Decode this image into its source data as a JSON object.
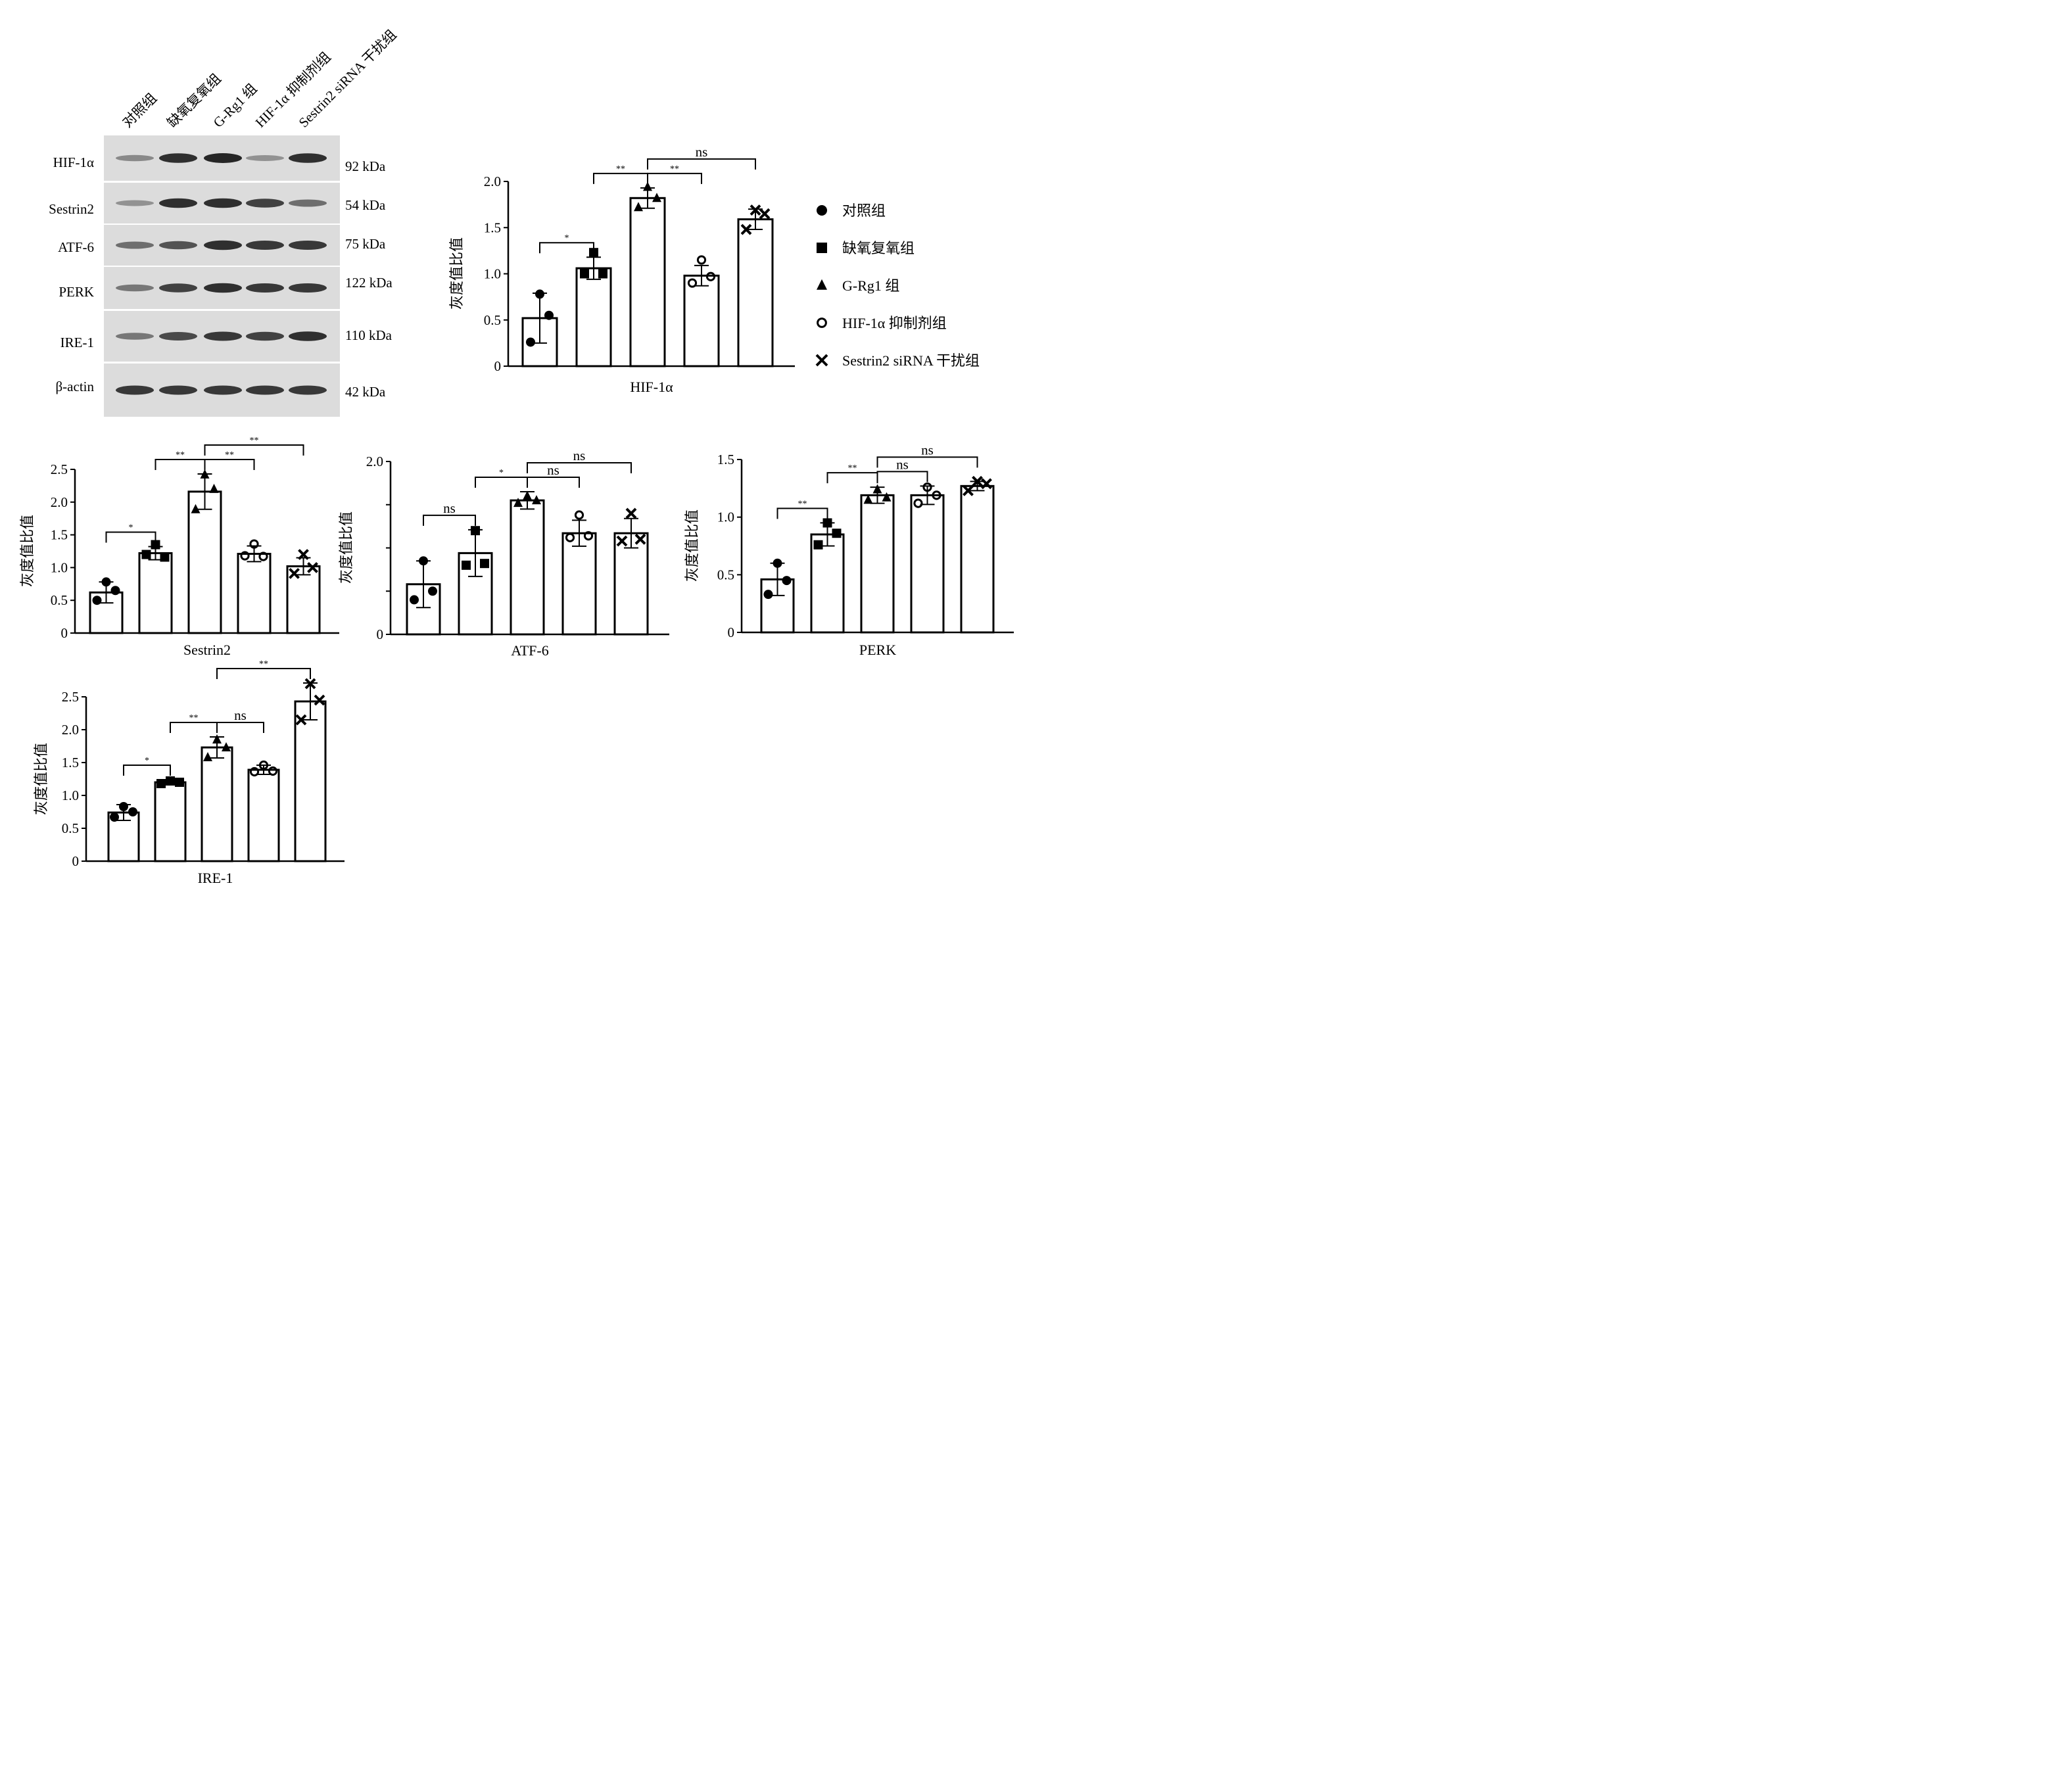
{
  "groups": [
    "对照组",
    "缺氧复氧组",
    "G-Rg1 组",
    "HIF-1α 抑制剂组",
    "Sestrin2 siRNA 干扰组"
  ],
  "legend": [
    {
      "marker": "circle",
      "label": "对照组"
    },
    {
      "marker": "square",
      "label": "缺氧复氧组"
    },
    {
      "marker": "triangle",
      "label": "G-Rg1 组"
    },
    {
      "marker": "open-circle",
      "label": "HIF-1α 抑制剂组"
    },
    {
      "marker": "cross",
      "label": "Sestrin2 siRNA 干扰组"
    }
  ],
  "blot": {
    "rows": [
      {
        "protein": "HIF-1α",
        "size": "92 kDa",
        "intensity": [
          0.35,
          0.85,
          0.9,
          0.3,
          0.85
        ]
      },
      {
        "protein": "Sestrin2",
        "size": "54 kDa",
        "intensity": [
          0.3,
          0.85,
          0.85,
          0.75,
          0.5
        ]
      },
      {
        "protein": "ATF-6",
        "size": "75 kDa",
        "intensity": [
          0.5,
          0.65,
          0.85,
          0.8,
          0.8
        ]
      },
      {
        "protein": "PERK",
        "size": "122 kDa",
        "intensity": [
          0.45,
          0.75,
          0.85,
          0.8,
          0.8
        ]
      },
      {
        "protein": "IRE-1",
        "size": "110 kDa",
        "intensity": [
          0.45,
          0.7,
          0.8,
          0.75,
          0.85
        ]
      },
      {
        "protein": "β-actin",
        "size": "42 kDa",
        "intensity": [
          0.8,
          0.8,
          0.8,
          0.8,
          0.8
        ]
      }
    ]
  },
  "chart_data": [
    {
      "type": "bar",
      "xlabel": "HIF-1α",
      "ylabel": "灰度值比值",
      "ylim": [
        0,
        2.0
      ],
      "ticks": [
        0,
        0.5,
        1.0,
        1.5,
        2.0
      ],
      "tick_labels": [
        "0",
        "0.5",
        "1.0",
        "1.5",
        "2.0"
      ],
      "categories": [
        "对照组",
        "缺氧复氧组",
        "G-Rg1 组",
        "HIF-1α 抑制剂组",
        "Sestrin2 siRNA 干扰组"
      ],
      "values": [
        0.52,
        1.06,
        1.82,
        0.98,
        1.59
      ],
      "errors": [
        0.27,
        0.12,
        0.11,
        0.11,
        0.11
      ],
      "points": [
        [
          0.78,
          0.26,
          0.55
        ],
        [
          1.23,
          1.0,
          1.0
        ],
        [
          1.94,
          1.72,
          1.82
        ],
        [
          1.15,
          0.9,
          0.97
        ],
        [
          1.69,
          1.48,
          1.65
        ]
      ],
      "significance": [
        {
          "from": 0,
          "to": 1,
          "label": "*"
        },
        {
          "from": 1,
          "to": 2,
          "label": "**"
        },
        {
          "from": 2,
          "to": 3,
          "label": "**"
        },
        {
          "from": 2,
          "to": 4,
          "label": "ns"
        }
      ]
    },
    {
      "type": "bar",
      "xlabel": "Sestrin2",
      "ylabel": "灰度值比值",
      "ylim": [
        0,
        2.5
      ],
      "ticks": [
        0,
        0.5,
        1.0,
        1.5,
        2.0,
        2.5
      ],
      "tick_labels": [
        "0",
        "0.5",
        "1.0",
        "1.5",
        "2.0",
        "2.5"
      ],
      "categories": [
        "对照组",
        "缺氧复氧组",
        "G-Rg1 组",
        "HIF-1α 抑制剂组",
        "Sestrin2 siRNA 干扰组"
      ],
      "values": [
        0.62,
        1.22,
        2.16,
        1.21,
        1.02
      ],
      "errors": [
        0.16,
        0.1,
        0.27,
        0.12,
        0.13
      ],
      "points": [
        [
          0.78,
          0.5,
          0.65
        ],
        [
          1.35,
          1.2,
          1.16
        ],
        [
          2.42,
          1.89,
          2.2
        ],
        [
          1.36,
          1.18,
          1.17
        ],
        [
          1.2,
          0.91,
          1.0
        ]
      ],
      "significance": [
        {
          "from": 0,
          "to": 1,
          "label": "*"
        },
        {
          "from": 1,
          "to": 2,
          "label": "**"
        },
        {
          "from": 2,
          "to": 3,
          "label": "**"
        },
        {
          "from": 2,
          "to": 4,
          "label": "**"
        }
      ]
    },
    {
      "type": "bar",
      "xlabel": "ATF-6",
      "ylabel": "灰度值比值",
      "ylim": [
        0,
        2.0
      ],
      "ticks": [
        0,
        0.5,
        1.0,
        1.5,
        2.0
      ],
      "tick_labels": [
        "0",
        "",
        "",
        "",
        "2.0"
      ],
      "categories": [
        "对照组",
        "缺氧复氧组",
        "G-Rg1 组",
        "HIF-1α 抑制剂组",
        "Sestrin2 siRNA 干扰组"
      ],
      "values": [
        0.58,
        0.94,
        1.55,
        1.17,
        1.17
      ],
      "errors": [
        0.27,
        0.27,
        0.1,
        0.15,
        0.17
      ],
      "points": [
        [
          0.85,
          0.4,
          0.5
        ],
        [
          1.2,
          0.8,
          0.82
        ],
        [
          1.6,
          1.52,
          1.55
        ],
        [
          1.38,
          1.12,
          1.14
        ],
        [
          1.4,
          1.08,
          1.1
        ]
      ],
      "significance": [
        {
          "from": 0,
          "to": 1,
          "label": "ns"
        },
        {
          "from": 1,
          "to": 2,
          "label": "*"
        },
        {
          "from": 2,
          "to": 3,
          "label": "ns"
        },
        {
          "from": 2,
          "to": 4,
          "label": "ns"
        }
      ]
    },
    {
      "type": "bar",
      "xlabel": "PERK",
      "ylabel": "灰度值比值",
      "ylim": [
        0,
        1.5
      ],
      "ticks": [
        0,
        0.5,
        1.0,
        1.5
      ],
      "tick_labels": [
        "0",
        "0.5",
        "1.0",
        "1.5"
      ],
      "categories": [
        "对照组",
        "缺氧复氧组",
        "G-Rg1 组",
        "HIF-1α 抑制剂组",
        "Sestrin2 siRNA 干扰组"
      ],
      "values": [
        0.46,
        0.85,
        1.19,
        1.19,
        1.27
      ],
      "errors": [
        0.14,
        0.1,
        0.07,
        0.08,
        0.04
      ],
      "points": [
        [
          0.6,
          0.33,
          0.45
        ],
        [
          0.95,
          0.76,
          0.86
        ],
        [
          1.24,
          1.15,
          1.17
        ],
        [
          1.26,
          1.12,
          1.19
        ],
        [
          1.31,
          1.23,
          1.29
        ]
      ],
      "significance": [
        {
          "from": 0,
          "to": 1,
          "label": "**"
        },
        {
          "from": 1,
          "to": 2,
          "label": "**"
        },
        {
          "from": 2,
          "to": 3,
          "label": "ns"
        },
        {
          "from": 2,
          "to": 4,
          "label": "ns"
        }
      ]
    },
    {
      "type": "bar",
      "xlabel": "IRE-1",
      "ylabel": "灰度值比值",
      "ylim": [
        0,
        2.5
      ],
      "ticks": [
        0,
        0.5,
        1.0,
        1.5,
        2.0,
        2.5
      ],
      "tick_labels": [
        "0",
        "0.5",
        "1.0",
        "1.5",
        "2.0",
        "2.5"
      ],
      "categories": [
        "对照组",
        "缺氧复氧组",
        "G-Rg1 组",
        "HIF-1α 抑制剂组",
        "Sestrin2 siRNA 干扰组"
      ],
      "values": [
        0.74,
        1.2,
        1.73,
        1.39,
        2.43
      ],
      "errors": [
        0.12,
        0.04,
        0.16,
        0.07,
        0.28
      ],
      "points": [
        [
          0.83,
          0.67,
          0.75
        ],
        [
          1.22,
          1.18,
          1.2
        ],
        [
          1.85,
          1.58,
          1.73
        ],
        [
          1.46,
          1.36,
          1.37
        ],
        [
          2.7,
          2.15,
          2.45
        ]
      ],
      "significance": [
        {
          "from": 0,
          "to": 1,
          "label": "*"
        },
        {
          "from": 1,
          "to": 2,
          "label": "**"
        },
        {
          "from": 2,
          "to": 3,
          "label": "ns"
        },
        {
          "from": 2,
          "to": 4,
          "label": "**"
        }
      ]
    }
  ]
}
